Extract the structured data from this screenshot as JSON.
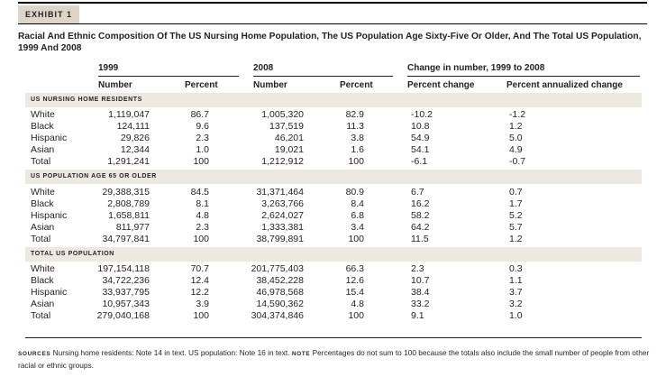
{
  "exhibit_label": "EXHIBIT 1",
  "title": "Racial And Ethnic Composition Of The US Nursing Home Population, The US Population Age Sixty-Five Or Older, And The Total US Population, 1999 And 2008",
  "group_headers": {
    "y1999": "1999",
    "y2008": "2008",
    "change": "Change in number, 1999 to 2008"
  },
  "column_headers": {
    "number_1999": "Number",
    "percent_1999": "Percent",
    "number_2008": "Number",
    "percent_2008": "Percent",
    "percent_change": "Percent change",
    "annualized_change": "Percent annualized change"
  },
  "sections": [
    {
      "label": "US NURSING HOME RESIDENTS",
      "rows": [
        {
          "group": "White",
          "n1999": "1,119,047",
          "p1999": "86.7",
          "n2008": "1,005,320",
          "p2008": "82.9",
          "pct_change": "-10.2",
          "annualized": "-1.2"
        },
        {
          "group": "Black",
          "n1999": "124,111",
          "p1999": "9.6",
          "n2008": "137,519",
          "p2008": "11.3",
          "pct_change": "10.8",
          "annualized": "1.2"
        },
        {
          "group": "Hispanic",
          "n1999": "29,826",
          "p1999": "2.3",
          "n2008": "46,201",
          "p2008": "3.8",
          "pct_change": "54.9",
          "annualized": "5.0"
        },
        {
          "group": "Asian",
          "n1999": "12,344",
          "p1999": "1.0",
          "n2008": "19,021",
          "p2008": "1.6",
          "pct_change": "54.1",
          "annualized": "4.9"
        },
        {
          "group": "Total",
          "n1999": "1,291,241",
          "p1999": "100",
          "n2008": "1,212,912",
          "p2008": "100",
          "pct_change": "-6.1",
          "annualized": "-0.7"
        }
      ]
    },
    {
      "label": "US POPULATION AGE 65 OR OLDER",
      "rows": [
        {
          "group": "White",
          "n1999": "29,388,315",
          "p1999": "84.5",
          "n2008": "31,371,464",
          "p2008": "80.9",
          "pct_change": "6.7",
          "annualized": "0.7"
        },
        {
          "group": "Black",
          "n1999": "2,808,789",
          "p1999": "8.1",
          "n2008": "3,263,766",
          "p2008": "8.4",
          "pct_change": "16.2",
          "annualized": "1.7"
        },
        {
          "group": "Hispanic",
          "n1999": "1,658,811",
          "p1999": "4.8",
          "n2008": "2,624,027",
          "p2008": "6.8",
          "pct_change": "58.2",
          "annualized": "5.2"
        },
        {
          "group": "Asian",
          "n1999": "811,977",
          "p1999": "2.3",
          "n2008": "1,333,381",
          "p2008": "3.4",
          "pct_change": "64.2",
          "annualized": "5.7"
        },
        {
          "group": "Total",
          "n1999": "34,797,841",
          "p1999": "100",
          "n2008": "38,799,891",
          "p2008": "100",
          "pct_change": "11.5",
          "annualized": "1.2"
        }
      ]
    },
    {
      "label": "TOTAL US POPULATION",
      "rows": [
        {
          "group": "White",
          "n1999": "197,154,118",
          "p1999": "70.7",
          "n2008": "201,775,403",
          "p2008": "66.3",
          "pct_change": "2.3",
          "annualized": "0.3"
        },
        {
          "group": "Black",
          "n1999": "34,722,236",
          "p1999": "12.4",
          "n2008": "38,452,228",
          "p2008": "12.6",
          "pct_change": "10.7",
          "annualized": "1.1"
        },
        {
          "group": "Hispanic",
          "n1999": "33,937,795",
          "p1999": "12.2",
          "n2008": "46,978,568",
          "p2008": "15.4",
          "pct_change": "38.4",
          "annualized": "3.7"
        },
        {
          "group": "Asian",
          "n1999": "10,957,343",
          "p1999": "3.9",
          "n2008": "14,590,362",
          "p2008": "4.8",
          "pct_change": "33.2",
          "annualized": "3.2"
        },
        {
          "group": "Total",
          "n1999": "279,040,168",
          "p1999": "100",
          "n2008": "304,374,846",
          "p2008": "100",
          "pct_change": "9.1",
          "annualized": "1.0"
        }
      ]
    }
  ],
  "footnote": {
    "sources_tag": "SOURCES",
    "sources_text": " Nursing home residents: Note 14 in text. US population: Note 16 in text. ",
    "note_tag": "NOTE",
    "note_text": " Percentages do not sum to 100 because the totals also include the small number of people from other racial or ethnic groups."
  },
  "colors": {
    "exhibit_tab": "#ddd6c8",
    "section_band": "#ede9e1",
    "text": "#231f20"
  }
}
